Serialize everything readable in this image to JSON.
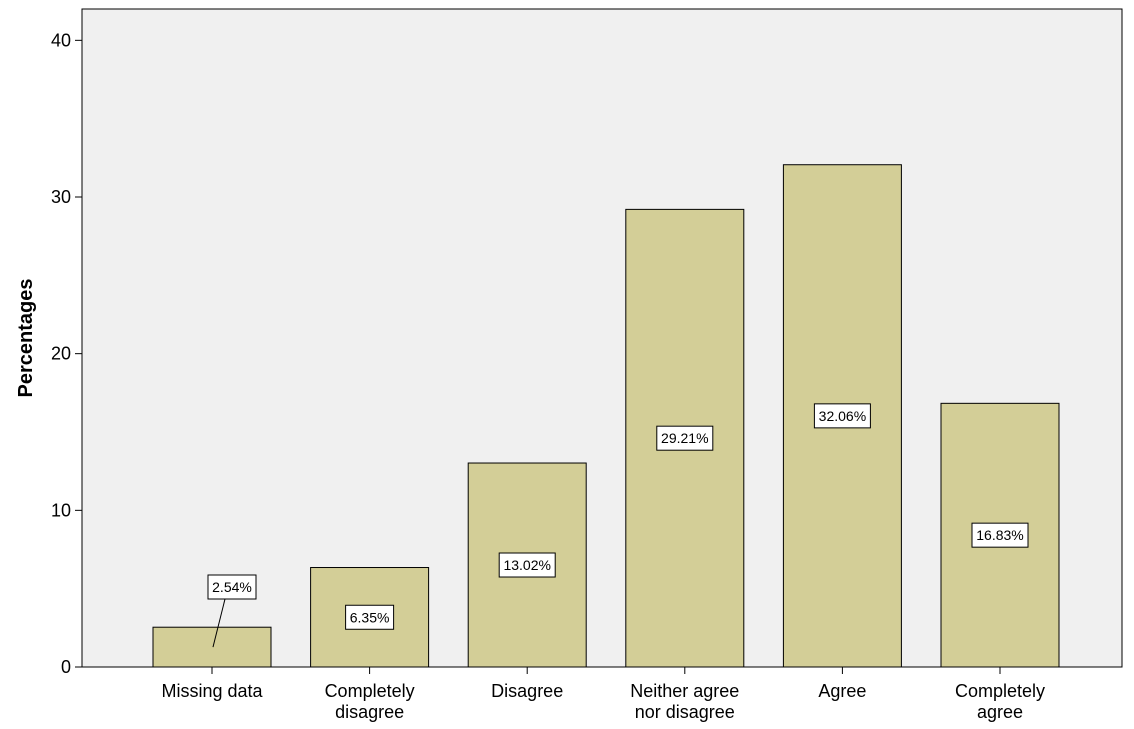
{
  "chart_data": {
    "type": "bar",
    "categories": [
      [
        "Missing data"
      ],
      [
        "Completely",
        "disagree"
      ],
      [
        "Disagree"
      ],
      [
        "Neither agree",
        "nor disagree"
      ],
      [
        "Agree"
      ],
      [
        "Completely",
        "agree"
      ]
    ],
    "values": [
      2.54,
      6.35,
      13.02,
      29.21,
      32.06,
      16.83
    ],
    "data_labels": [
      "2.54%",
      "6.35%",
      "13.02%",
      "29.21%",
      "32.06%",
      "16.83%"
    ],
    "title": "",
    "xlabel": "",
    "ylabel": "Percentages",
    "ylim": [
      0,
      42
    ],
    "yticks": [
      0,
      10,
      20,
      30,
      40
    ],
    "grid": false,
    "legend": "none",
    "colors": {
      "plot_background": "#f0f0f0",
      "bar_fill": "#d3ce97",
      "bar_stroke": "#000000",
      "label_box": "#ffffff"
    }
  }
}
